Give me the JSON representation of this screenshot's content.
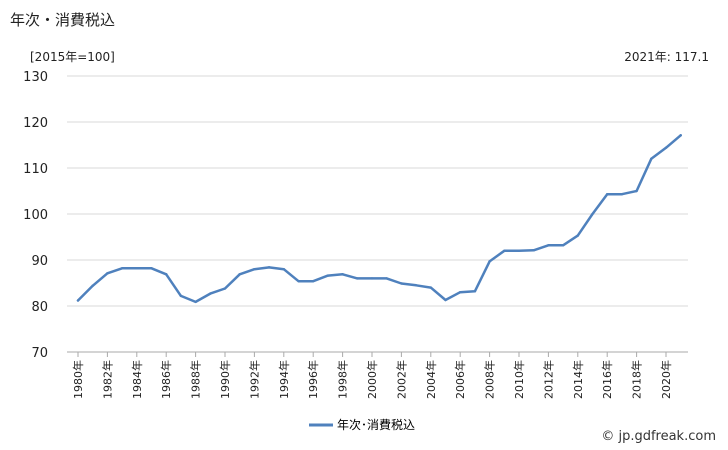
{
  "header": {
    "title": "年次・消費税込",
    "unit": "[2015年=100]",
    "latest": "2021年: 117.1"
  },
  "watermark": "© jp.gdfreak.com",
  "chart_data": {
    "type": "line",
    "x": [
      1980,
      1981,
      1982,
      1983,
      1984,
      1985,
      1986,
      1987,
      1988,
      1989,
      1990,
      1991,
      1992,
      1993,
      1994,
      1995,
      1996,
      1997,
      1998,
      1999,
      2000,
      2001,
      2002,
      2003,
      2004,
      2005,
      2006,
      2007,
      2008,
      2009,
      2010,
      2011,
      2012,
      2013,
      2014,
      2015,
      2016,
      2017,
      2018,
      2019,
      2020,
      2021
    ],
    "tick_labels": [
      "1980年",
      "1982年",
      "1984年",
      "1986年",
      "1988年",
      "1990年",
      "1992年",
      "1994年",
      "1996年",
      "1998年",
      "2000年",
      "2002年",
      "2004年",
      "2006年",
      "2008年",
      "2010年",
      "2012年",
      "2014年",
      "2016年",
      "2018年",
      "2020年"
    ],
    "series": [
      {
        "name": "年次･消費税込",
        "color": "#4f81bd",
        "values": [
          81.2,
          84.4,
          87.1,
          88.2,
          88.2,
          88.2,
          86.9,
          82.2,
          80.9,
          82.7,
          83.8,
          86.9,
          88.0,
          88.4,
          88.0,
          85.4,
          85.4,
          86.6,
          86.9,
          86.0,
          86.0,
          86.0,
          84.9,
          84.5,
          84.0,
          81.3,
          83.0,
          83.2,
          89.7,
          92.0,
          92.0,
          92.1,
          93.2,
          93.2,
          95.3,
          100.0,
          104.3,
          104.3,
          105.0,
          112.0,
          114.4,
          117.1
        ]
      }
    ],
    "ylim": [
      70,
      130
    ],
    "yticks": [
      70,
      80,
      90,
      100,
      110,
      120,
      130
    ],
    "grid": true,
    "legend": "bottom-center"
  }
}
